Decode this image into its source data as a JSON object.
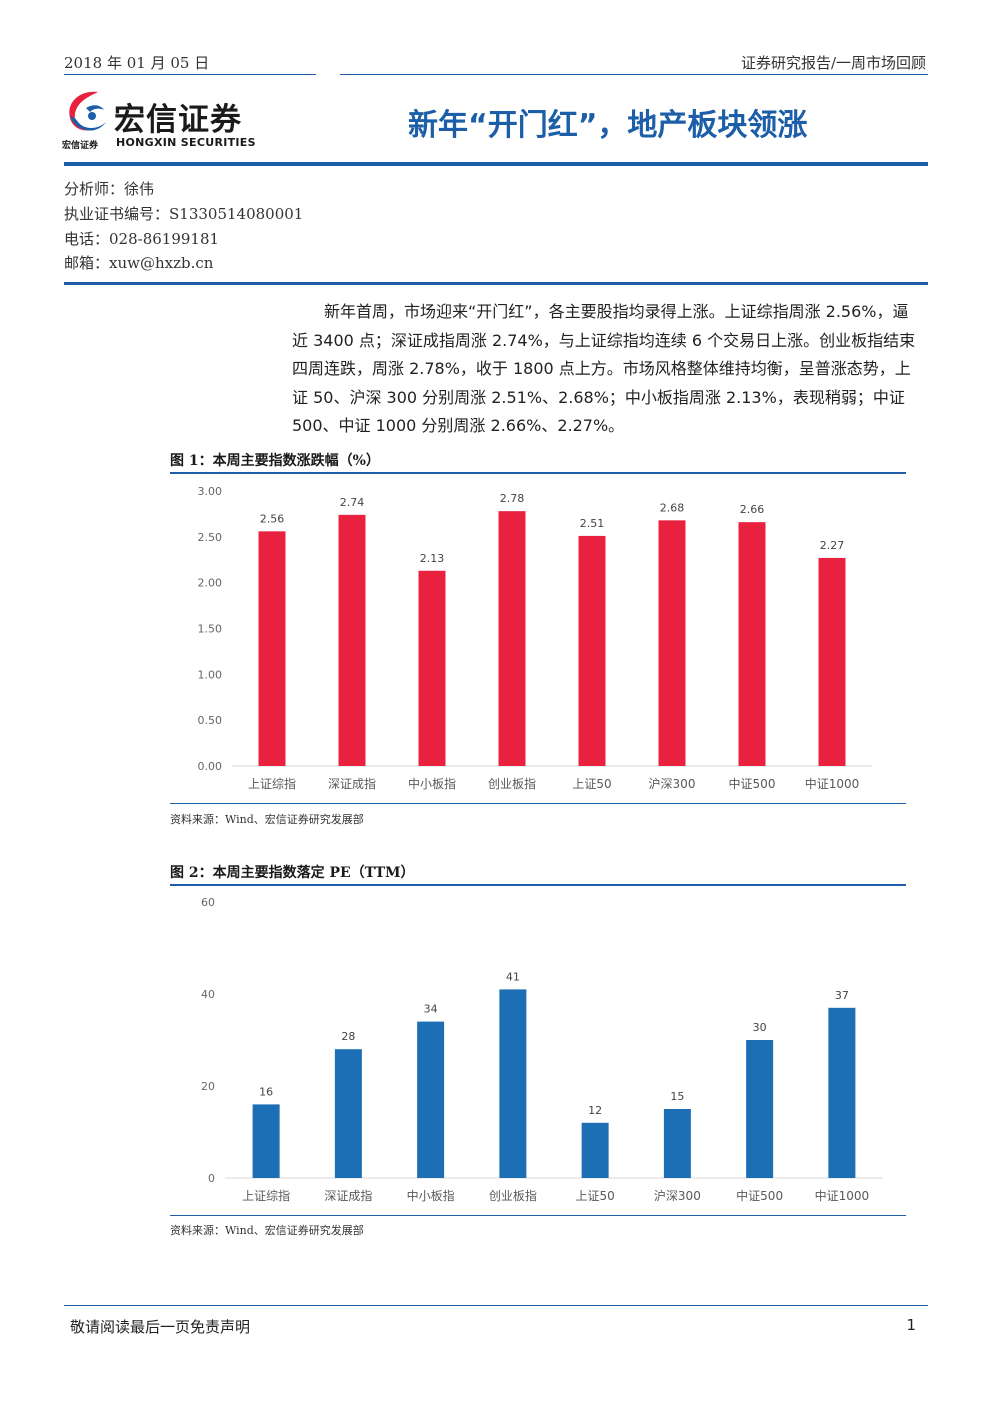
{
  "header": {
    "date": "2018 年 01 月 05 日",
    "report_type": "证券研究报告/一周市场回顾",
    "brand_color": "#1c5ea8"
  },
  "logo": {
    "name_cn": "宏信证券",
    "name_small": "宏信证券",
    "name_en": "HONGXIN SECURITIES",
    "accent_red": "#e8213f",
    "accent_blue": "#1c5ea8"
  },
  "title": "新年“开门红”，地产板块领涨",
  "analyst": {
    "name_line": "分析师：徐伟",
    "cert_line": "执业证书编号：S1330514080001",
    "phone_line": "电话：028-86199181",
    "email_line": "邮箱：xuw@hxzb.cn"
  },
  "summary": "新年首周，市场迎来“开门红”，各主要股指均录得上涨。上证综指周涨 2.56%，逼近 3400 点；深证成指周涨 2.74%，与上证综指均连续 6 个交易日上涨。创业板指结束四周连跌，周涨 2.78%，收于 1800 点上方。市场风格整体维持均衡，呈普涨态势，上证 50、沪深 300 分别周涨 2.51%、2.68%；中小板指周涨 2.13%，表现稍弱；中证 500、中证 1000 分别周涨 2.66%、2.27%。",
  "figures": {
    "fig1_title": "图 1：本周主要指数涨跌幅（%）",
    "fig1_source": "资料来源：Wind、宏信证券研究发展部",
    "fig2_title": "图 2：本周主要指数落定 PE（TTM）",
    "fig2_source": "资料来源：Wind、宏信证券研究发展部"
  },
  "chart_data": [
    {
      "type": "bar",
      "title": "",
      "categories": [
        "上证综指",
        "深证成指",
        "中小板指",
        "创业板指",
        "上证50",
        "沪深300",
        "中证500",
        "中证1000"
      ],
      "values": [
        2.56,
        2.74,
        2.13,
        2.78,
        2.51,
        2.68,
        2.66,
        2.27
      ],
      "value_labels": [
        "2.56",
        "2.74",
        "2.13",
        "2.78",
        "2.51",
        "2.68",
        "2.66",
        "2.27"
      ],
      "ylim": [
        0,
        3
      ],
      "yticks": [
        "0.00",
        "0.50",
        "1.00",
        "1.50",
        "2.00",
        "2.50",
        "3.00"
      ],
      "grid": false,
      "color": "#e8213f"
    },
    {
      "type": "bar",
      "title": "",
      "categories": [
        "上证综指",
        "深证成指",
        "中小板指",
        "创业板指",
        "上证50",
        "沪深300",
        "中证500",
        "中证1000"
      ],
      "values": [
        16,
        28,
        34,
        41,
        12,
        15,
        30,
        37
      ],
      "value_labels": [
        "16",
        "28",
        "34",
        "41",
        "12",
        "15",
        "30",
        "37"
      ],
      "ylim": [
        0,
        60
      ],
      "yticks": [
        "0",
        "20",
        "40",
        "60"
      ],
      "grid": false,
      "color": "#1c6fb5"
    }
  ],
  "footer": {
    "disclaimer": "敬请阅读最后一页免责声明",
    "page": "1"
  }
}
